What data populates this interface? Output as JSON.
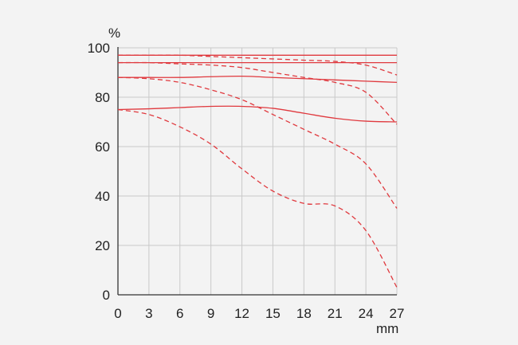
{
  "chart_data": {
    "type": "line",
    "title": "",
    "ylabel": "%",
    "xlabel": "mm",
    "xlim": [
      0,
      27
    ],
    "ylim": [
      0,
      100
    ],
    "xticks": [
      0,
      3,
      6,
      9,
      12,
      15,
      18,
      21,
      24,
      27
    ],
    "yticks": [
      0,
      20,
      40,
      60,
      80,
      100
    ],
    "grid": true,
    "line_color": "#e0393e",
    "series": [
      {
        "style": "solid",
        "x": [
          0,
          3,
          6,
          9,
          12,
          15,
          18,
          21,
          24,
          27
        ],
        "y": [
          97,
          97,
          97,
          97,
          97,
          97,
          97,
          97,
          97,
          97
        ]
      },
      {
        "style": "dashed",
        "x": [
          0,
          3,
          6,
          9,
          12,
          15,
          18,
          21,
          24,
          27
        ],
        "y": [
          97,
          97,
          97,
          96.5,
          96,
          95.5,
          95,
          94.5,
          93,
          89
        ]
      },
      {
        "style": "solid",
        "x": [
          0,
          3,
          6,
          9,
          12,
          15,
          18,
          21,
          24,
          27
        ],
        "y": [
          94,
          94,
          94,
          94,
          94,
          94,
          94,
          94,
          94,
          94
        ]
      },
      {
        "style": "dashed",
        "x": [
          0,
          3,
          6,
          9,
          12,
          15,
          18,
          21,
          24,
          27
        ],
        "y": [
          94,
          94,
          93.5,
          93,
          92,
          90,
          88,
          86,
          82,
          69
        ]
      },
      {
        "style": "solid",
        "x": [
          0,
          3,
          6,
          9,
          12,
          15,
          18,
          21,
          24,
          27
        ],
        "y": [
          88,
          88,
          88,
          88.3,
          88.5,
          88,
          87.5,
          87,
          86.5,
          86
        ]
      },
      {
        "style": "dashed",
        "x": [
          0,
          3,
          6,
          9,
          12,
          15,
          18,
          21,
          24,
          27
        ],
        "y": [
          88,
          87.5,
          86,
          83,
          79,
          73,
          67,
          61,
          53,
          35
        ]
      },
      {
        "style": "solid",
        "x": [
          0,
          3,
          6,
          9,
          12,
          15,
          18,
          21,
          24,
          27
        ],
        "y": [
          75,
          75.3,
          75.8,
          76.3,
          76.3,
          75.5,
          73.5,
          71.5,
          70.3,
          70
        ]
      },
      {
        "style": "dashed",
        "x": [
          0,
          3,
          6,
          9,
          12,
          15,
          18,
          21,
          24,
          27
        ],
        "y": [
          75,
          73,
          68,
          61,
          51,
          42,
          37,
          36,
          26,
          3
        ]
      }
    ]
  }
}
